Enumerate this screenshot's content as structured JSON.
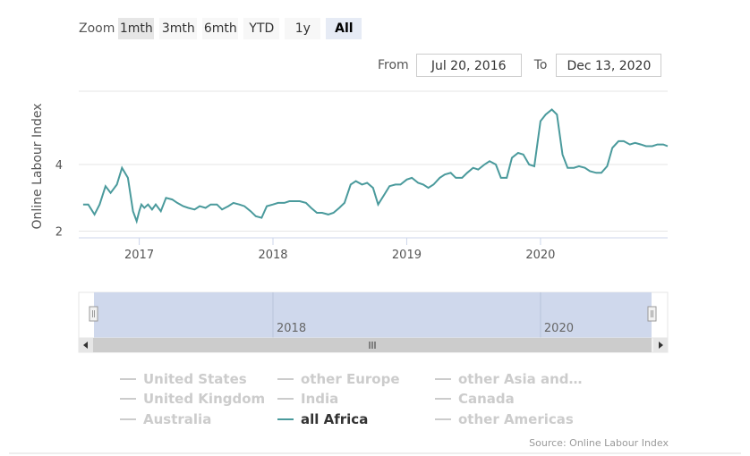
{
  "toolbar": {
    "zoom_label": "Zoom",
    "buttons": [
      "1mth",
      "3mth",
      "6mth",
      "YTD",
      "1y",
      "All"
    ],
    "active": "All",
    "from_label": "From",
    "from_value": "Jul 20, 2016",
    "to_label": "To",
    "to_value": "Dec 13, 2020"
  },
  "colors": {
    "series": "#4a9a9c",
    "inactive": "#cccccc",
    "navigator_fill": "#ccd6eb"
  },
  "chart_data": {
    "type": "line",
    "ylabel": "Online Labour Index",
    "yticks": [
      2,
      4
    ],
    "ylim": [
      1.8,
      6.2
    ],
    "xlim": [
      "2016-07-20",
      "2020-12-13"
    ],
    "xticks": [
      "2017",
      "2018",
      "2019",
      "2020"
    ],
    "grid": true,
    "series": [
      {
        "name": "all Africa",
        "x": [
          "2016-08-01",
          "2016-08-15",
          "2016-09-01",
          "2016-09-15",
          "2016-10-01",
          "2016-10-15",
          "2016-11-01",
          "2016-11-15",
          "2016-12-01",
          "2016-12-15",
          "2016-12-25",
          "2017-01-01",
          "2017-01-07",
          "2017-01-15",
          "2017-01-25",
          "2017-02-05",
          "2017-02-15",
          "2017-03-01",
          "2017-03-15",
          "2017-04-01",
          "2017-04-15",
          "2017-05-01",
          "2017-05-15",
          "2017-06-01",
          "2017-06-15",
          "2017-07-01",
          "2017-07-15",
          "2017-08-01",
          "2017-08-15",
          "2017-09-01",
          "2017-09-15",
          "2017-10-01",
          "2017-10-15",
          "2017-11-01",
          "2017-11-15",
          "2017-12-01",
          "2017-12-15",
          "2018-01-01",
          "2018-01-15",
          "2018-02-01",
          "2018-02-15",
          "2018-03-01",
          "2018-03-15",
          "2018-04-01",
          "2018-04-15",
          "2018-05-01",
          "2018-05-15",
          "2018-06-01",
          "2018-06-15",
          "2018-07-01",
          "2018-07-15",
          "2018-08-01",
          "2018-08-15",
          "2018-09-01",
          "2018-09-15",
          "2018-10-01",
          "2018-10-15",
          "2018-11-01",
          "2018-11-15",
          "2018-12-01",
          "2018-12-15",
          "2019-01-01",
          "2019-01-15",
          "2019-02-01",
          "2019-02-15",
          "2019-03-01",
          "2019-03-15",
          "2019-04-01",
          "2019-04-15",
          "2019-05-01",
          "2019-05-15",
          "2019-06-01",
          "2019-06-15",
          "2019-07-01",
          "2019-07-15",
          "2019-08-01",
          "2019-08-15",
          "2019-09-01",
          "2019-09-15",
          "2019-10-01",
          "2019-10-15",
          "2019-11-01",
          "2019-11-15",
          "2019-12-01",
          "2019-12-15",
          "2020-01-01",
          "2020-01-15",
          "2020-02-01",
          "2020-02-15",
          "2020-03-01",
          "2020-03-15",
          "2020-04-01",
          "2020-04-15",
          "2020-05-01",
          "2020-05-15",
          "2020-06-01",
          "2020-06-15",
          "2020-07-01",
          "2020-07-15",
          "2020-08-01",
          "2020-08-15",
          "2020-09-01",
          "2020-09-15",
          "2020-10-01",
          "2020-10-15",
          "2020-11-01",
          "2020-11-15",
          "2020-12-01",
          "2020-12-13"
        ],
        "y": [
          2.8,
          2.8,
          2.5,
          2.8,
          3.35,
          3.15,
          3.4,
          3.9,
          3.6,
          2.6,
          2.3,
          2.6,
          2.8,
          2.7,
          2.8,
          2.65,
          2.8,
          2.6,
          3.0,
          2.95,
          2.85,
          2.75,
          2.7,
          2.65,
          2.75,
          2.7,
          2.8,
          2.8,
          2.65,
          2.75,
          2.85,
          2.8,
          2.75,
          2.6,
          2.45,
          2.4,
          2.75,
          2.8,
          2.85,
          2.85,
          2.9,
          2.9,
          2.9,
          2.85,
          2.7,
          2.55,
          2.55,
          2.5,
          2.55,
          2.7,
          2.85,
          3.4,
          3.5,
          3.4,
          3.45,
          3.3,
          2.8,
          3.1,
          3.35,
          3.4,
          3.4,
          3.55,
          3.6,
          3.45,
          3.4,
          3.3,
          3.4,
          3.6,
          3.7,
          3.75,
          3.6,
          3.6,
          3.75,
          3.9,
          3.85,
          4.0,
          4.1,
          4.0,
          3.6,
          3.6,
          4.2,
          4.35,
          4.3,
          4.0,
          3.95,
          5.3,
          5.5,
          5.65,
          5.5,
          4.3,
          3.9,
          3.9,
          3.95,
          3.9,
          3.8,
          3.75,
          3.75,
          3.95,
          4.5,
          4.7,
          4.7,
          4.6,
          4.65,
          4.6,
          4.55,
          4.55,
          4.6,
          4.6,
          4.55
        ]
      }
    ],
    "navigator": {
      "ticks": [
        "2018",
        "2020"
      ],
      "range": [
        "2016-07-20",
        "2020-12-13"
      ]
    }
  },
  "legend": [
    {
      "label": "United States",
      "active": false
    },
    {
      "label": "other Europe",
      "active": false
    },
    {
      "label": "other Asia and…",
      "active": false
    },
    {
      "label": "United Kingdom",
      "active": false
    },
    {
      "label": "India",
      "active": false
    },
    {
      "label": "Canada",
      "active": false
    },
    {
      "label": "Australia",
      "active": false
    },
    {
      "label": "all Africa",
      "active": true
    },
    {
      "label": "other Americas",
      "active": false
    }
  ],
  "source": "Source: Online Labour Index"
}
